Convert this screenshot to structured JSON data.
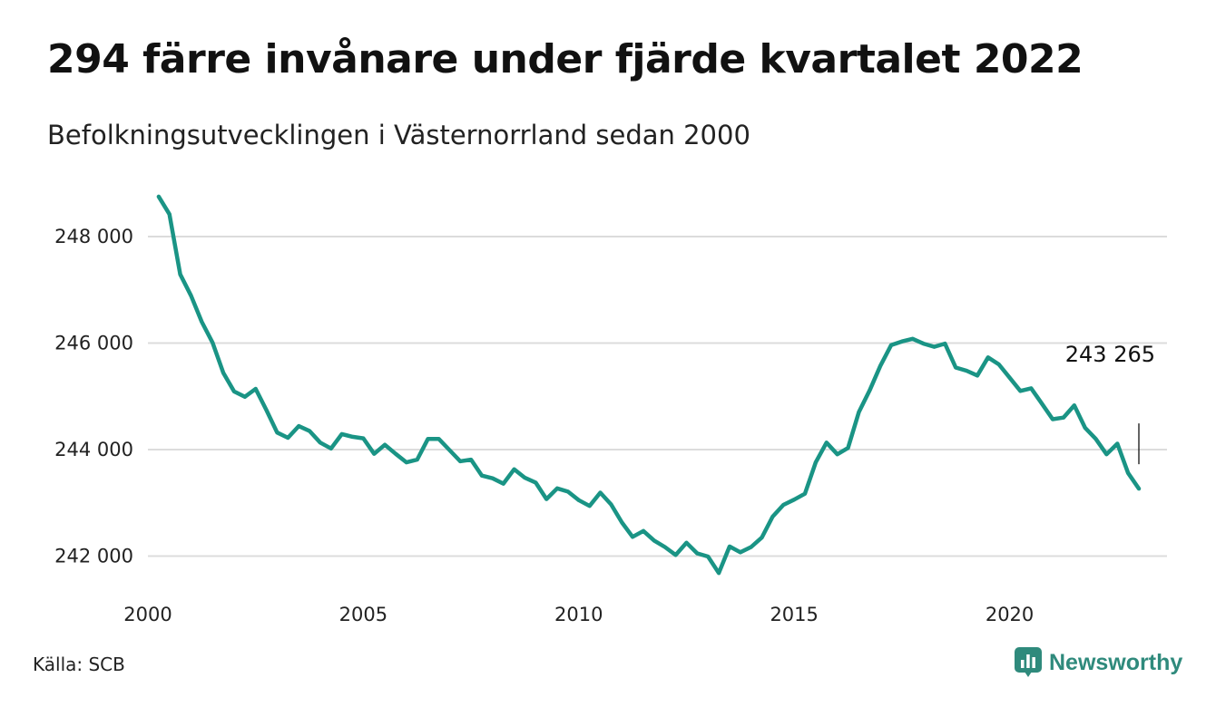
{
  "title": "294 färre invånare under fjärde kvartalet 2022",
  "subtitle": "Befolkningsutvecklingen i Västernorrland sedan 2000",
  "source": "Källa: SCB",
  "brand": {
    "name": "Newsworthy",
    "icon": "newsworthy-logo-icon",
    "color": "#2f8a7c"
  },
  "chart_data": {
    "type": "line",
    "color": "#1a9485",
    "gridline_color": "#dcdcdc",
    "grid": true,
    "ylim": [
      241650,
      248800
    ],
    "xlim": [
      2000.0,
      2023.0
    ],
    "y_ticks": [
      {
        "value": 242000,
        "label": "242 000"
      },
      {
        "value": 244000,
        "label": "244 000"
      },
      {
        "value": 246000,
        "label": "246 000"
      },
      {
        "value": 248000,
        "label": "248 000"
      }
    ],
    "x_ticks": [
      {
        "value": 2000,
        "label": "2000"
      },
      {
        "value": 2005,
        "label": "2005"
      },
      {
        "value": 2010,
        "label": "2010"
      },
      {
        "value": 2015,
        "label": "2015"
      },
      {
        "value": 2020,
        "label": "2020"
      }
    ],
    "end_label": "243 265",
    "x": [
      2000.25,
      2000.5,
      2000.75,
      2001.0,
      2001.25,
      2001.5,
      2001.75,
      2002.0,
      2002.25,
      2002.5,
      2002.75,
      2003.0,
      2003.25,
      2003.5,
      2003.75,
      2004.0,
      2004.25,
      2004.5,
      2004.75,
      2005.0,
      2005.25,
      2005.5,
      2005.75,
      2006.0,
      2006.25,
      2006.5,
      2006.75,
      2007.0,
      2007.25,
      2007.5,
      2007.75,
      2008.0,
      2008.25,
      2008.5,
      2008.75,
      2009.0,
      2009.25,
      2009.5,
      2009.75,
      2010.0,
      2010.25,
      2010.5,
      2010.75,
      2011.0,
      2011.25,
      2011.5,
      2011.75,
      2012.0,
      2012.25,
      2012.5,
      2012.75,
      2013.0,
      2013.25,
      2013.5,
      2013.75,
      2014.0,
      2014.25,
      2014.5,
      2014.75,
      2015.0,
      2015.25,
      2015.5,
      2015.75,
      2016.0,
      2016.25,
      2016.5,
      2016.75,
      2017.0,
      2017.25,
      2017.5,
      2017.75,
      2018.0,
      2018.25,
      2018.5,
      2018.75,
      2019.0,
      2019.25,
      2019.5,
      2019.75,
      2020.0,
      2020.25,
      2020.5,
      2020.75,
      2021.0,
      2021.25,
      2021.5,
      2021.75,
      2022.0,
      2022.25,
      2022.5,
      2022.75,
      2023.0
    ],
    "values": [
      248750,
      248420,
      247290,
      246890,
      246400,
      246010,
      245440,
      245090,
      244990,
      245140,
      244740,
      244320,
      244220,
      244440,
      244350,
      244130,
      244020,
      244290,
      244240,
      244210,
      243920,
      244090,
      243920,
      243760,
      243810,
      244200,
      244200,
      243990,
      243780,
      243810,
      243510,
      243460,
      243360,
      243630,
      243470,
      243380,
      243070,
      243270,
      243210,
      243050,
      242940,
      243190,
      242970,
      242630,
      242360,
      242470,
      242290,
      242170,
      242020,
      242250,
      242050,
      241990,
      241680,
      242180,
      242070,
      242170,
      242350,
      242740,
      242960,
      243060,
      243170,
      243760,
      244130,
      243910,
      244030,
      244700,
      245110,
      245570,
      245960,
      246030,
      246080,
      245990,
      245930,
      245990,
      245540,
      245480,
      245390,
      245730,
      245600,
      245350,
      245100,
      245150,
      244860,
      244570,
      244600,
      244830,
      244410,
      244200,
      243910,
      244110,
      243560,
      243265
    ]
  }
}
